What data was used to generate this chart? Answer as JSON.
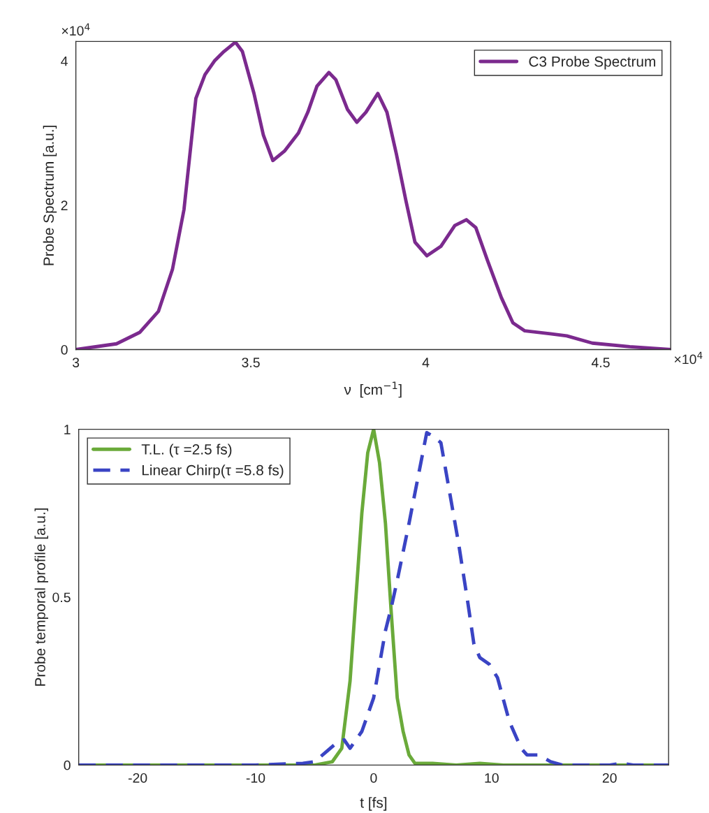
{
  "chart_data": [
    {
      "type": "line",
      "xlabel": "ν  [cm$^{−1}$]",
      "ylabel": "Probe Spectrum [a.u.]",
      "annotations": [
        "×10$^{4}$",
        "×10$^{4}$"
      ],
      "xlim": [
        3,
        4.7
      ],
      "xticks": [
        3,
        3.5,
        4,
        4.5
      ],
      "ylim": [
        0,
        4.27
      ],
      "yticks": [
        0,
        2,
        4
      ],
      "grid": false,
      "legend": "top right",
      "line_style": "solid",
      "series": [
        {
          "name": "C3 Probe Spectrum",
          "color": "#7b2a8e",
          "x": [
            3.0,
            3.116,
            3.183,
            3.236,
            3.276,
            3.309,
            3.343,
            3.369,
            3.396,
            3.423,
            3.456,
            3.476,
            3.509,
            3.536,
            3.563,
            3.596,
            3.636,
            3.663,
            3.689,
            3.723,
            3.743,
            3.776,
            3.803,
            3.829,
            3.863,
            3.889,
            3.916,
            3.943,
            3.969,
            4.003,
            4.043,
            4.083,
            4.116,
            4.143,
            4.176,
            4.216,
            4.249,
            4.283,
            4.356,
            4.403,
            4.476,
            4.583,
            4.7
          ],
          "values": [
            0,
            0.08,
            0.24,
            0.53,
            1.11,
            1.94,
            3.48,
            3.81,
            4.0,
            4.13,
            4.26,
            4.13,
            3.55,
            2.97,
            2.62,
            2.75,
            3.0,
            3.29,
            3.65,
            3.84,
            3.74,
            3.33,
            3.15,
            3.29,
            3.55,
            3.29,
            2.71,
            2.07,
            1.49,
            1.3,
            1.43,
            1.72,
            1.8,
            1.69,
            1.24,
            0.72,
            0.37,
            0.26,
            0.22,
            0.19,
            0.09,
            0.04,
            0
          ]
        }
      ]
    },
    {
      "type": "line",
      "xlabel": "t [fs]",
      "ylabel": "Probe temporal profile [a.u.]",
      "xlim": [
        -25,
        25
      ],
      "xticks": [
        -20,
        -10,
        0,
        10,
        20
      ],
      "ylim": [
        0,
        1
      ],
      "yticks": [
        0,
        0.5,
        1
      ],
      "grid": false,
      "legend": "top left",
      "series": [
        {
          "name": "T.L. (τ =2.5 fs)",
          "color": "#6aaa3a",
          "line_style": "solid",
          "x": [
            -25,
            -10,
            -5,
            -3.5,
            -2.7,
            -2,
            -1.5,
            -1,
            -0.5,
            0,
            0.5,
            1,
            1.5,
            2,
            2.5,
            3,
            3.5,
            5,
            7,
            9,
            11,
            25
          ],
          "values": [
            0,
            0,
            0,
            0.01,
            0.05,
            0.25,
            0.5,
            0.75,
            0.93,
            1,
            0.9,
            0.72,
            0.45,
            0.2,
            0.1,
            0.03,
            0.005,
            0.005,
            0,
            0.005,
            0,
            0
          ]
        },
        {
          "name": "Linear Chirp(τ =5.8 fs)",
          "color": "#3a44c4",
          "line_style": "dashed",
          "x": [
            -25,
            -10,
            -6,
            -5,
            -4,
            -3,
            -2.5,
            -2,
            -1,
            0,
            0.5,
            1,
            1.5,
            2,
            3,
            4,
            4.5,
            5,
            5.7,
            6.5,
            7.2,
            8,
            8.5,
            9,
            9.8,
            10.5,
            11.5,
            12.5,
            13,
            14,
            15,
            16,
            20,
            21,
            22,
            25
          ],
          "values": [
            0,
            0,
            0.005,
            0.01,
            0.04,
            0.07,
            0.075,
            0.05,
            0.1,
            0.2,
            0.3,
            0.4,
            0.47,
            0.55,
            0.72,
            0.9,
            0.99,
            0.98,
            0.96,
            0.8,
            0.66,
            0.48,
            0.36,
            0.32,
            0.3,
            0.26,
            0.13,
            0.05,
            0.03,
            0.03,
            0.01,
            0,
            0,
            0.005,
            0,
            0
          ]
        }
      ]
    }
  ]
}
